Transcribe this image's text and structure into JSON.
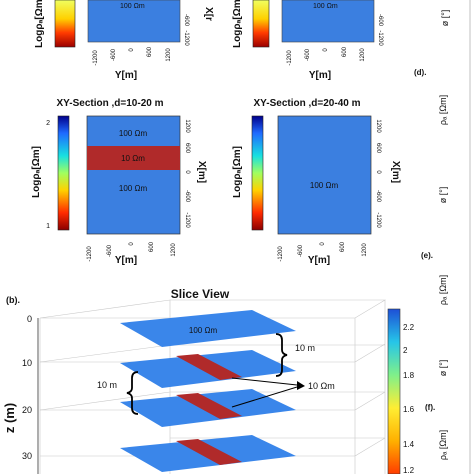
{
  "top_row": {
    "left_panel": {
      "cbar_label": "Logρₐ[Ωm]",
      "xaxis_label": "Y[m]",
      "yaxis_label": "X[r",
      "annot": "100 Ωm",
      "xticks": [
        "-1200",
        "-600",
        "0",
        "600",
        "1200"
      ],
      "yticks": [
        "-1200",
        "-600"
      ]
    },
    "right_panel": {
      "cbar_label": "Logρₐ[Ωm]",
      "xaxis_label": "Y[m]",
      "annot": "100 Ωm",
      "xticks": [
        "-1200",
        "-600",
        "0",
        "600",
        "1200"
      ],
      "yticks": [
        "-1200",
        "-600"
      ]
    }
  },
  "mid_row": {
    "left_panel": {
      "title": "XY-Section ,d=10-20 m",
      "cbar_label": "Logρₐ[Ωm]",
      "cbar_ticks": [
        "2",
        "1"
      ],
      "band_top": "100 Ωm",
      "band_mid": "10 Ωm",
      "band_bot": "100 Ωm",
      "xaxis_label": "Y[m]",
      "yaxis_label": "X[m]",
      "xticks": [
        "-1200",
        "-600",
        "0",
        "600",
        "1200"
      ],
      "yticks": [
        "1200",
        "600",
        "0",
        "-600",
        "-1200"
      ]
    },
    "right_panel": {
      "title": "XY-Section ,d=20-40 m",
      "cbar_label": "Logρₐ[Ωm]",
      "annot": "100 Ωm",
      "xaxis_label": "Y[m]",
      "yaxis_label": "X[m]",
      "xticks": [
        "-1200",
        "-600",
        "0",
        "600",
        "1200"
      ],
      "yticks": [
        "1200",
        "600",
        "0",
        "-600",
        "-1200"
      ]
    }
  },
  "slice_view": {
    "label": "(b).",
    "title": "Slice View",
    "zlabel": "z (m)",
    "zticks": [
      "0",
      "10",
      "20",
      "30"
    ],
    "annot_100": "100 Ωm",
    "annot_10m_a": "10 m",
    "annot_10m_b": "10 m",
    "annot_10ohm": "10 Ωm",
    "colorbar_ticks": [
      "2.2",
      "2",
      "1.8",
      "1.6",
      "1.4",
      "1.2"
    ]
  },
  "right_strip": {
    "labels": [
      "(d).",
      "(e).",
      "(f)."
    ],
    "axis_rho": "ρₐ [Ωm]",
    "axis_phi": "ø [°]"
  },
  "colors": {
    "blue": "#3b7fe0",
    "red": "#b02a2a",
    "plate_blue": "#3a86ea"
  }
}
